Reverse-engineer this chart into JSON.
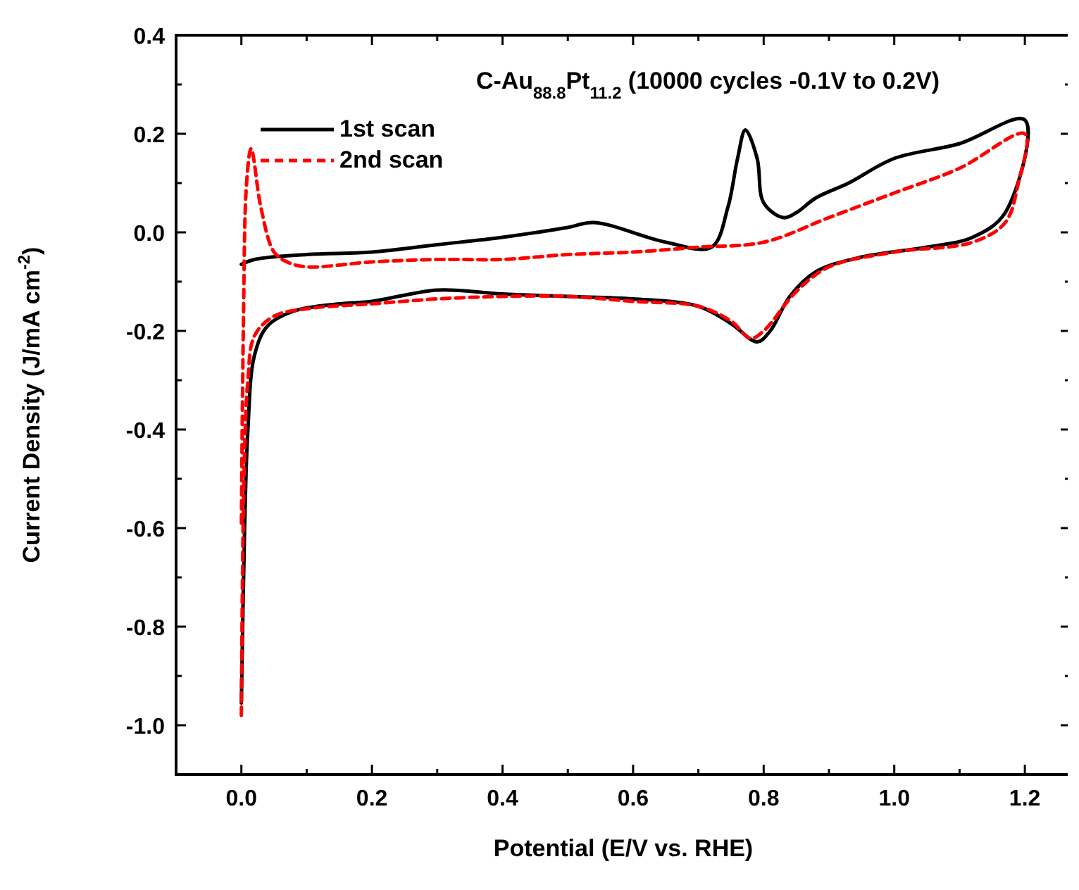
{
  "chart_data": {
    "type": "line",
    "title": "C-Au$_{88.8}$Pt$_{11.2}$ (10000 cycles -0.1V to 0.2V)",
    "xlabel": "Potential (E/V vs. RHE)",
    "ylabel": "Current Density (J/mA cm$^{-2}$)",
    "xlim": [
      -0.1,
      1.27
    ],
    "ylim": [
      -1.1,
      0.4
    ],
    "xticks": [
      {
        "value": 0,
        "label": "0.0"
      },
      {
        "value": 0.1,
        "label": null
      },
      0.2,
      {
        "value": 0.3,
        "label": null
      },
      0.4,
      {
        "value": 0.5,
        "label": null
      },
      0.6,
      {
        "value": 0.7,
        "label": null
      },
      0.8,
      {
        "value": 0.9,
        "label": null
      },
      {
        "value": 1,
        "label": "1.0"
      },
      {
        "value": 1.1,
        "label": null
      },
      1.2
    ],
    "yticks": [
      {
        "value": -1,
        "label": "-1.0"
      },
      {
        "value": -0.9,
        "label": null
      },
      -0.8,
      {
        "value": -0.7,
        "label": null
      },
      -0.6,
      {
        "value": -0.5,
        "label": null
      },
      -0.4,
      {
        "value": -0.3,
        "label": null
      },
      -0.2,
      {
        "value": -0.1,
        "label": null
      },
      {
        "value": 0,
        "label": "0.0"
      },
      {
        "value": 0.1,
        "label": null
      },
      0.2,
      {
        "value": 0.3,
        "label": null
      },
      0.4
    ],
    "legend": "top left",
    "grid": false,
    "series": [
      {
        "name": "1st scan",
        "color": "#000000",
        "line_style": "solid",
        "x": [
          0,
          0.005,
          0.01,
          0.02,
          0.04,
          0.08,
          0.15,
          0.2,
          0.3,
          0.4,
          0.5,
          0.6,
          0.7,
          0.75,
          0.79,
          0.81,
          0.84,
          0.88,
          0.95,
          1.05,
          1.12,
          1.17,
          1.2,
          1.1,
          1.0,
          0.93,
          0.88,
          0.85,
          0.83,
          0.8,
          0.79,
          0.772,
          0.76,
          0.745,
          0.72,
          0.65,
          0.54,
          0.5,
          0.4,
          0.3,
          0.2,
          0.1,
          0.02,
          0
        ],
        "values": [
          -0.955,
          -0.6,
          -0.4,
          -0.25,
          -0.19,
          -0.16,
          -0.145,
          -0.14,
          -0.117,
          -0.125,
          -0.13,
          -0.135,
          -0.15,
          -0.185,
          -0.222,
          -0.2,
          -0.13,
          -0.08,
          -0.05,
          -0.03,
          -0.01,
          0.04,
          0.228,
          0.18,
          0.15,
          0.1,
          0.07,
          0.04,
          0.03,
          0.06,
          0.15,
          0.208,
          0.15,
          0.05,
          -0.03,
          -0.02,
          0.02,
          0.01,
          -0.01,
          -0.025,
          -0.04,
          -0.045,
          -0.055,
          -0.065
        ]
      },
      {
        "name": "2nd scan",
        "color": "#ff0000",
        "line_style": "dashed",
        "x": [
          0,
          0.004,
          0.01,
          0.02,
          0.05,
          0.1,
          0.2,
          0.3,
          0.4,
          0.5,
          0.6,
          0.7,
          0.75,
          0.78,
          0.8,
          0.85,
          0.9,
          1.0,
          1.12,
          1.17,
          1.19,
          1.2,
          1.1,
          1.0,
          0.9,
          0.8,
          0.7,
          0.6,
          0.5,
          0.4,
          0.3,
          0.2,
          0.1,
          0.07,
          0.05,
          0.03,
          0.015,
          0.008,
          0.003,
          0
        ],
        "values": [
          -0.98,
          -0.5,
          -0.3,
          -0.21,
          -0.17,
          -0.155,
          -0.145,
          -0.135,
          -0.13,
          -0.13,
          -0.14,
          -0.15,
          -0.18,
          -0.215,
          -0.2,
          -0.12,
          -0.07,
          -0.04,
          -0.02,
          0.02,
          0.1,
          0.2,
          0.13,
          0.08,
          0.03,
          -0.02,
          -0.03,
          -0.04,
          -0.045,
          -0.055,
          -0.055,
          -0.06,
          -0.07,
          -0.06,
          -0.04,
          0.05,
          0.17,
          0.1,
          -0.2,
          -0.6
        ]
      }
    ]
  }
}
